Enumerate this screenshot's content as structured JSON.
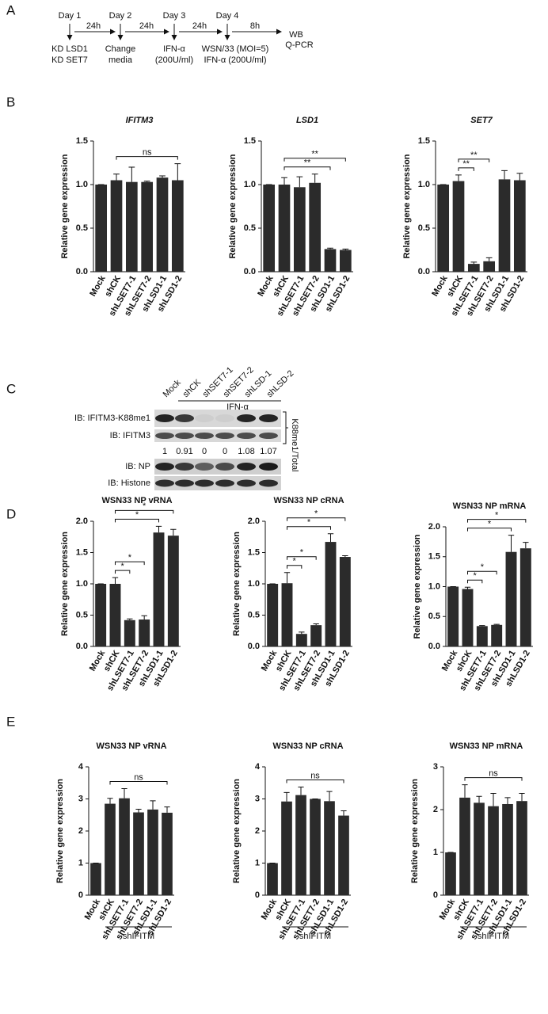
{
  "panel_labels": [
    "A",
    "B",
    "C",
    "D",
    "E"
  ],
  "panel_a": {
    "steps": [
      {
        "day": "Day 1",
        "lines": [
          "KD LSD1",
          "KD SET7"
        ]
      },
      {
        "day": "Day 2",
        "lines": [
          "Change",
          "media"
        ]
      },
      {
        "day": "Day 3",
        "lines": [
          "IFN-α",
          "(200U/ml)"
        ]
      },
      {
        "day": "Day 4",
        "lines": [
          "WSN/33 (MOI=5)",
          "IFN-α (200U/ml)"
        ]
      }
    ],
    "intervals": [
      "24h",
      "24h",
      "24h",
      "8h"
    ],
    "end": [
      "WB",
      "Q-PCR"
    ]
  },
  "panel_c": {
    "columns": [
      "Mock",
      "shCK",
      "shSET7-1",
      "shSET7-2",
      "shLSD-1",
      "shLSD-2"
    ],
    "treatment": "IFN-α",
    "rows": [
      "IB: IFITM3-K88me1",
      "IB: IFITM3",
      "IB: NP",
      "IB: Histone"
    ],
    "ratios": [
      1,
      0.91,
      0,
      0,
      1.08,
      1.07
    ],
    "ratio_label": "K88me1/Total"
  },
  "chart_data": [
    {
      "type": "bar",
      "title": "IFITM3",
      "y_label": "Relative gene expression",
      "color": "#2b2b2b",
      "categories": [
        "Mock",
        "shCK",
        "shLSET7-1",
        "shLSET7-2",
        "shLSD1-1",
        "shLSD1-2"
      ],
      "values": [
        1,
        1.05,
        1.03,
        1.03,
        1.08,
        1.05
      ],
      "errors": [
        0,
        0.07,
        0.17,
        0.01,
        0.02,
        0.19
      ],
      "ylim": [
        0,
        1.5
      ],
      "yticks": [
        {
          "value": 0,
          "label": "0.0"
        },
        {
          "value": 0.5,
          "label": "0.5"
        },
        {
          "value": 1,
          "label": "1.0"
        },
        {
          "value": 1.5,
          "label": "1.5"
        }
      ],
      "comparisons": [
        {
          "label": "ns",
          "pair": [
            "shCK",
            "shLSD1-2"
          ]
        }
      ]
    },
    {
      "type": "bar",
      "title": "LSD1",
      "y_label": "Relative gene expression",
      "color": "#2b2b2b",
      "categories": [
        "Mock",
        "shCK",
        "shLSET7-1",
        "shLSET7-2",
        "shLSD1-1",
        "shLSD1-2"
      ],
      "values": [
        1,
        1.0,
        0.97,
        1.02,
        0.26,
        0.25
      ],
      "errors": [
        0,
        0.08,
        0.12,
        0.1,
        0.01,
        0.01
      ],
      "ylim": [
        0,
        1.5
      ],
      "yticks": [
        {
          "value": 0,
          "label": "0.0"
        },
        {
          "value": 0.5,
          "label": "0.5"
        },
        {
          "value": 1,
          "label": "1.0"
        },
        {
          "value": 1.5,
          "label": "1.5"
        }
      ],
      "comparisons": [
        {
          "label": "**",
          "pair": [
            "shCK",
            "shLSD1-1"
          ]
        },
        {
          "label": "**",
          "pair": [
            "shCK",
            "shLSD1-2"
          ]
        }
      ]
    },
    {
      "type": "bar",
      "title": "SET7",
      "y_label": "Relative gene expression",
      "color": "#2b2b2b",
      "categories": [
        "Mock",
        "shCK",
        "shLSET7-1",
        "shLSET7-2",
        "shLSD1-1",
        "shLSD1-2"
      ],
      "values": [
        1,
        1.04,
        0.09,
        0.12,
        1.06,
        1.05
      ],
      "errors": [
        0,
        0.07,
        0.02,
        0.04,
        0.1,
        0.08
      ],
      "ylim": [
        0,
        1.5
      ],
      "yticks": [
        {
          "value": 0,
          "label": "0.0"
        },
        {
          "value": 0.5,
          "label": "0.5"
        },
        {
          "value": 1,
          "label": "1.0"
        },
        {
          "value": 1.5,
          "label": "1.5"
        }
      ],
      "comparisons": [
        {
          "label": "**",
          "pair": [
            "shCK",
            "shLSET7-1"
          ]
        },
        {
          "label": "**",
          "pair": [
            "shCK",
            "shLSET7-2"
          ]
        }
      ]
    },
    {
      "type": "bar",
      "title": "WSN33 NP vRNA",
      "y_label": "Relative gene expression",
      "color": "#2b2b2b",
      "categories": [
        "Mock",
        "shCK",
        "shLSET7-1",
        "shLSET7-2",
        "shLSD1-1",
        "shLSD1-2"
      ],
      "values": [
        1,
        1.0,
        0.42,
        0.43,
        1.82,
        1.77
      ],
      "errors": [
        0,
        0.1,
        0.02,
        0.06,
        0.1,
        0.1
      ],
      "ylim": [
        0,
        2
      ],
      "yticks": [
        {
          "value": 0,
          "label": "0.0"
        },
        {
          "value": 0.5,
          "label": "0.5"
        },
        {
          "value": 1,
          "label": "1.0"
        },
        {
          "value": 1.5,
          "label": "1.5"
        },
        {
          "value": 2,
          "label": "2.0"
        }
      ],
      "comparisons": [
        {
          "label": "*",
          "pair": [
            "shCK",
            "shLSET7-1"
          ]
        },
        {
          "label": "*",
          "pair": [
            "shCK",
            "shLSET7-2"
          ]
        },
        {
          "label": "*",
          "pair": [
            "shCK",
            "shLSD1-1"
          ]
        },
        {
          "label": "*",
          "pair": [
            "shCK",
            "shLSD1-2"
          ]
        }
      ]
    },
    {
      "type": "bar",
      "title": "WSN33 NP cRNA",
      "y_label": "Relative gene expression",
      "color": "#2b2b2b",
      "categories": [
        "Mock",
        "shCK",
        "shLSET7-1",
        "shLSET7-2",
        "shLSD1-1",
        "shLSD1-2"
      ],
      "values": [
        1,
        1.01,
        0.2,
        0.34,
        1.67,
        1.43
      ],
      "errors": [
        0,
        0.17,
        0.03,
        0.02,
        0.13,
        0.02
      ],
      "ylim": [
        0,
        2
      ],
      "yticks": [
        {
          "value": 0,
          "label": "0.0"
        },
        {
          "value": 0.5,
          "label": "0.5"
        },
        {
          "value": 1,
          "label": "1.0"
        },
        {
          "value": 1.5,
          "label": "1.5"
        },
        {
          "value": 2,
          "label": "2.0"
        }
      ],
      "comparisons": [
        {
          "label": "*",
          "pair": [
            "shCK",
            "shLSET7-1"
          ]
        },
        {
          "label": "*",
          "pair": [
            "shCK",
            "shLSET7-2"
          ]
        },
        {
          "label": "*",
          "pair": [
            "shCK",
            "shLSD1-1"
          ]
        },
        {
          "label": "*",
          "pair": [
            "shCK",
            "shLSD1-2"
          ]
        }
      ]
    },
    {
      "type": "bar",
      "title": "WSN33 NP mRNA",
      "y_label": "Relative gene expression",
      "color": "#2b2b2b",
      "categories": [
        "Mock",
        "shCK",
        "shLSET7-1",
        "shLSET7-2",
        "shLSD1-1",
        "shLSD1-2"
      ],
      "values": [
        1,
        0.96,
        0.34,
        0.36,
        1.58,
        1.64
      ],
      "errors": [
        0,
        0.03,
        0.01,
        0.01,
        0.28,
        0.1
      ],
      "ylim": [
        0,
        2
      ],
      "yticks": [
        {
          "value": 0,
          "label": "0.0"
        },
        {
          "value": 0.5,
          "label": "0.5"
        },
        {
          "value": 1,
          "label": "1.0"
        },
        {
          "value": 1.5,
          "label": "1.5"
        },
        {
          "value": 2,
          "label": "2.0"
        }
      ],
      "comparisons": [
        {
          "label": "*",
          "pair": [
            "shCK",
            "shLSET7-1"
          ]
        },
        {
          "label": "*",
          "pair": [
            "shCK",
            "shLSET7-2"
          ]
        },
        {
          "label": "*",
          "pair": [
            "shCK",
            "shLSD1-1"
          ]
        },
        {
          "label": "*",
          "pair": [
            "shCK",
            "shLSD1-2"
          ]
        }
      ]
    },
    {
      "type": "bar",
      "title": "WSN33 NP vRNA",
      "y_label": "Relative gene expression",
      "color": "#2b2b2b",
      "categories": [
        "Mock",
        "shCK",
        "shLSET7-1",
        "shLSET7-2",
        "shLSD1-1",
        "shLSD1-2"
      ],
      "values": [
        1,
        2.85,
        3.02,
        2.58,
        2.67,
        2.57
      ],
      "errors": [
        0,
        0.17,
        0.3,
        0.1,
        0.27,
        0.18
      ],
      "ylim": [
        0,
        4
      ],
      "yticks": [
        0,
        1,
        2,
        3,
        4
      ],
      "comparisons": [
        {
          "label": "ns",
          "pair": [
            "shCK",
            "shLSD1-2"
          ]
        }
      ],
      "group_label": "shIFITM",
      "group": [
        "shCK",
        "shLSD1-2"
      ]
    },
    {
      "type": "bar",
      "title": "WSN33 NP cRNA",
      "y_label": "Relative gene expression",
      "color": "#2b2b2b",
      "categories": [
        "Mock",
        "shCK",
        "shLSET7-1",
        "shLSET7-2",
        "shLSD1-1",
        "shLSD1-2"
      ],
      "values": [
        1,
        2.92,
        3.12,
        3.0,
        2.93,
        2.48
      ],
      "errors": [
        0,
        0.28,
        0.25,
        0,
        0.3,
        0.15
      ],
      "ylim": [
        0,
        4
      ],
      "yticks": [
        0,
        1,
        2,
        3,
        4
      ],
      "comparisons": [
        {
          "label": "ns",
          "pair": [
            "shCK",
            "shLSD1-2"
          ]
        }
      ],
      "group_label": "shIFITM",
      "group": [
        "shCK",
        "shLSD1-2"
      ]
    },
    {
      "type": "bar",
      "title": "WSN33 NP mRNA",
      "y_label": "Relative gene expression",
      "color": "#2b2b2b",
      "categories": [
        "Mock",
        "shCK",
        "shLSET7-1",
        "shLSET7-2",
        "shLSD1-1",
        "shLSD1-2"
      ],
      "values": [
        1,
        2.28,
        2.16,
        2.08,
        2.13,
        2.2
      ],
      "errors": [
        0,
        0.3,
        0.15,
        0.3,
        0.15,
        0.18
      ],
      "ylim": [
        0,
        3
      ],
      "yticks": [
        0,
        1,
        2,
        3
      ],
      "comparisons": [
        {
          "label": "ns",
          "pair": [
            "shCK",
            "shLSD1-2"
          ]
        }
      ],
      "group_label": "shIFITM",
      "group": [
        "shCK",
        "shLSD1-2"
      ]
    }
  ]
}
